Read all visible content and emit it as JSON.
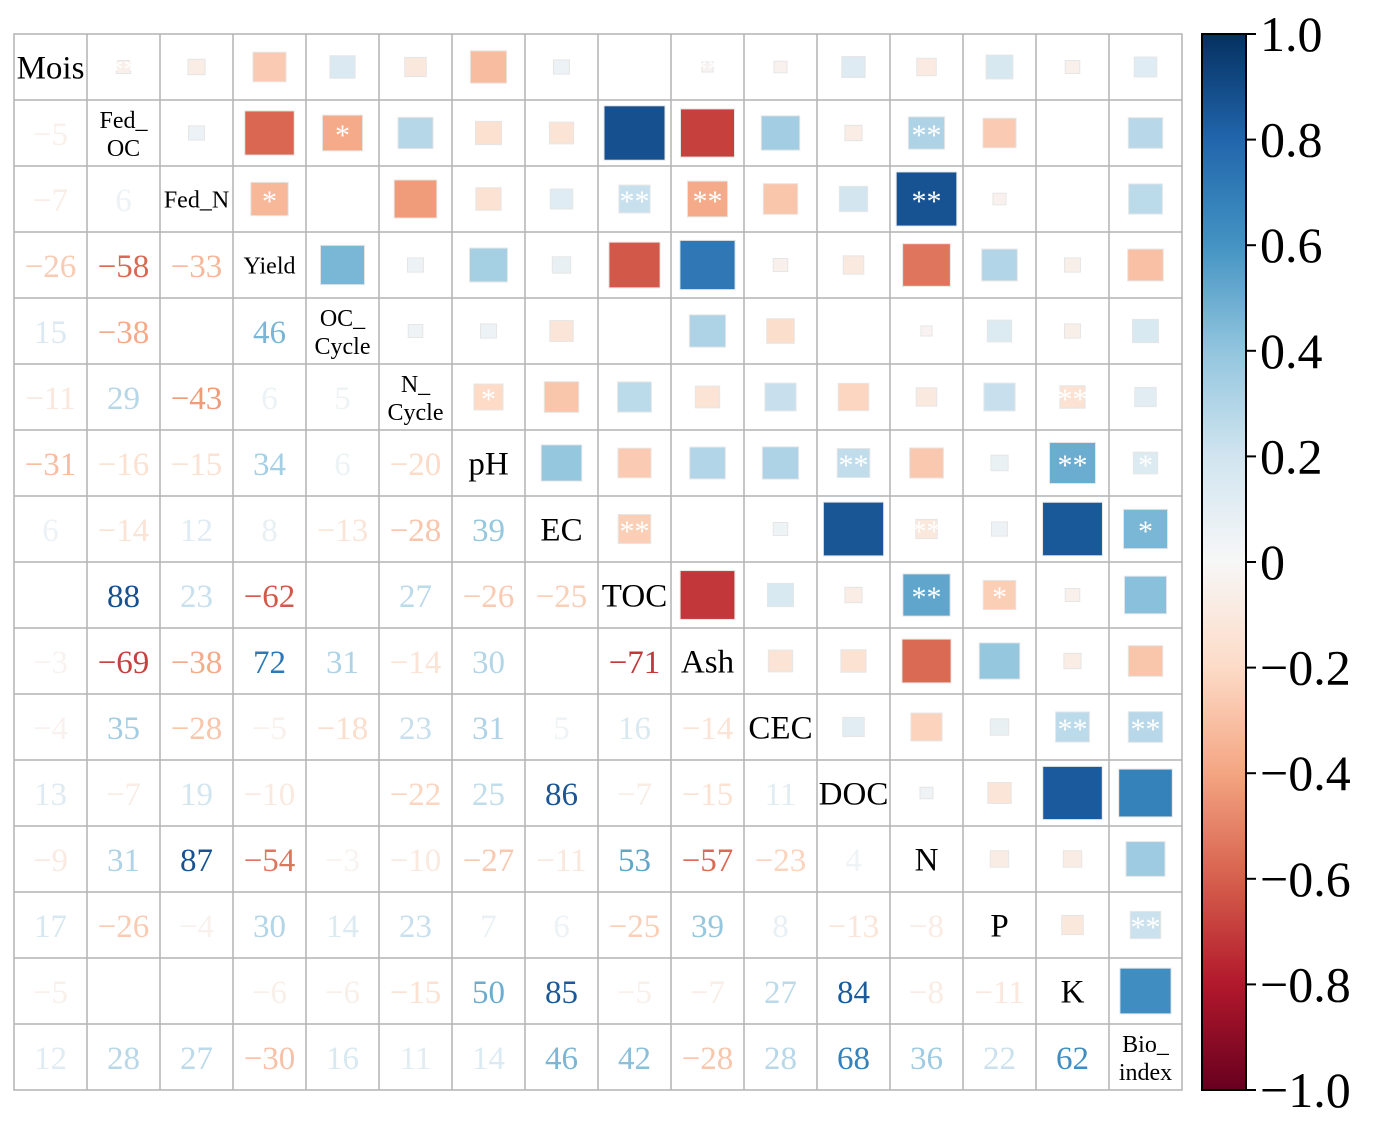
{
  "chart_data": {
    "type": "heatmap",
    "variables": [
      "Mois",
      "Fed_OC",
      "Fed_N",
      "Yield",
      "OC_Cycle",
      "N_Cycle",
      "pH",
      "EC",
      "TOC",
      "Ash",
      "CEC",
      "DOC",
      "N",
      "P",
      "K",
      "Bio_index"
    ],
    "diagonal_labels": [
      [
        "Mois"
      ],
      [
        "Fed_",
        "OC"
      ],
      [
        "Fed_N"
      ],
      [
        "Yield"
      ],
      [
        "OC_",
        "Cycle"
      ],
      [
        "N_",
        "Cycle"
      ],
      [
        "pH"
      ],
      [
        "EC"
      ],
      [
        "TOC"
      ],
      [
        "Ash"
      ],
      [
        "CEC"
      ],
      [
        "DOC"
      ],
      [
        "N"
      ],
      [
        "P"
      ],
      [
        "K"
      ],
      [
        "Bio_",
        "index"
      ]
    ],
    "lower_values": [
      [],
      [
        -5
      ],
      [
        -7,
        6
      ],
      [
        -26,
        -58,
        -33
      ],
      [
        15,
        -38,
        null,
        46
      ],
      [
        -11,
        29,
        -43,
        6,
        5
      ],
      [
        -31,
        -16,
        -15,
        34,
        6,
        -20
      ],
      [
        6,
        -14,
        12,
        8,
        -13,
        -28,
        39
      ],
      [
        null,
        88,
        23,
        -62,
        null,
        27,
        -26,
        -25
      ],
      [
        -3,
        -69,
        -38,
        72,
        31,
        -14,
        30,
        null,
        -71
      ],
      [
        -4,
        35,
        -28,
        -5,
        -18,
        23,
        31,
        5,
        16,
        -14
      ],
      [
        13,
        -7,
        19,
        -10,
        null,
        -22,
        25,
        86,
        -7,
        -15,
        11
      ],
      [
        -9,
        31,
        87,
        -54,
        -3,
        -10,
        -27,
        -11,
        53,
        -57,
        -23,
        4
      ],
      [
        17,
        -26,
        -4,
        30,
        14,
        23,
        7,
        6,
        -25,
        39,
        8,
        -13,
        -8
      ],
      [
        -5,
        null,
        null,
        -6,
        -6,
        -15,
        50,
        85,
        -5,
        -7,
        27,
        84,
        -8,
        -11
      ],
      [
        12,
        28,
        27,
        -30,
        16,
        11,
        14,
        46,
        42,
        -28,
        28,
        68,
        36,
        22,
        62
      ]
    ],
    "upper_significance": [
      [
        0,
        1,
        "**"
      ],
      [
        0,
        8,
        "**"
      ],
      [
        0,
        9,
        "**"
      ],
      [
        1,
        4,
        "*"
      ],
      [
        1,
        12,
        "**"
      ],
      [
        2,
        3,
        "*"
      ],
      [
        2,
        8,
        "**"
      ],
      [
        2,
        9,
        "**"
      ],
      [
        2,
        12,
        "**"
      ],
      [
        5,
        6,
        "*"
      ],
      [
        5,
        14,
        "**"
      ],
      [
        6,
        11,
        "**"
      ],
      [
        6,
        14,
        "**"
      ],
      [
        6,
        15,
        "*"
      ],
      [
        7,
        8,
        "**"
      ],
      [
        7,
        12,
        "**"
      ],
      [
        7,
        15,
        "*"
      ],
      [
        8,
        12,
        "**"
      ],
      [
        8,
        13,
        "*"
      ],
      [
        10,
        14,
        "**"
      ],
      [
        10,
        15,
        "**"
      ],
      [
        13,
        15,
        "**"
      ]
    ],
    "colorbar": {
      "min": -1.0,
      "max": 1.0,
      "ticks": [
        "1.0",
        "0.8",
        "0.6",
        "0.4",
        "0.2",
        "0",
        "−0.2",
        "−0.4",
        "−0.6",
        "−0.8",
        "−1.0"
      ]
    },
    "colormap": [
      "#67001f",
      "#b2182b",
      "#d6604d",
      "#f4a582",
      "#fddbc7",
      "#f7f7f7",
      "#d1e5f0",
      "#92c5de",
      "#4393c3",
      "#2166ac",
      "#053061"
    ]
  }
}
